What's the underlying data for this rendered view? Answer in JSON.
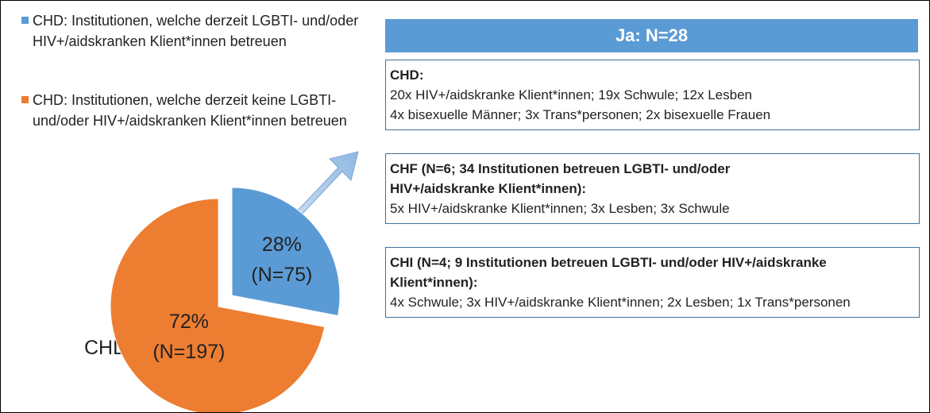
{
  "chart_data": {
    "type": "pie",
    "label": "CHD",
    "categories": [
      "CHD: Institutionen, welche derzeit LGBTI- und/oder HIV+/aidskranken Klient*innen betreuen",
      "CHD: Institutionen, welche derzeit keine LGBTI- und/oder HIV+/aidskranken Klient*innen betreuen"
    ],
    "values": [
      28,
      72
    ],
    "value_labels": [
      "28%",
      "72%"
    ],
    "n_labels": [
      "(N=75)",
      "(N=197)"
    ],
    "colors": [
      "#5b9bd5",
      "#ed7d31"
    ]
  },
  "panel": {
    "header": "Ja: N=28",
    "boxes": [
      {
        "title": "CHD:",
        "lines": [
          "20x HIV+/aidskranke Klient*innen; 19x Schwule; 12x Lesben",
          "4x bisexuelle Männer; 3x Trans*personen; 2x bisexuelle Frauen"
        ]
      },
      {
        "title": "CHF (N=6; 34 Institutionen betreuen LGBTI- und/oder HIV+/aidskranke Klient*innen):",
        "lines": [
          "5x HIV+/aidskranke Klient*innen; 3x Lesben; 3x Schwule"
        ]
      },
      {
        "title": "CHI (N=4; 9 Institutionen betreuen LGBTI- und/oder HIV+/aidskranke Klient*innen):",
        "lines": [
          "4x Schwule; 3x HIV+/aidskranke Klient*innen; 2x Lesben; 1x Trans*personen"
        ]
      }
    ]
  }
}
